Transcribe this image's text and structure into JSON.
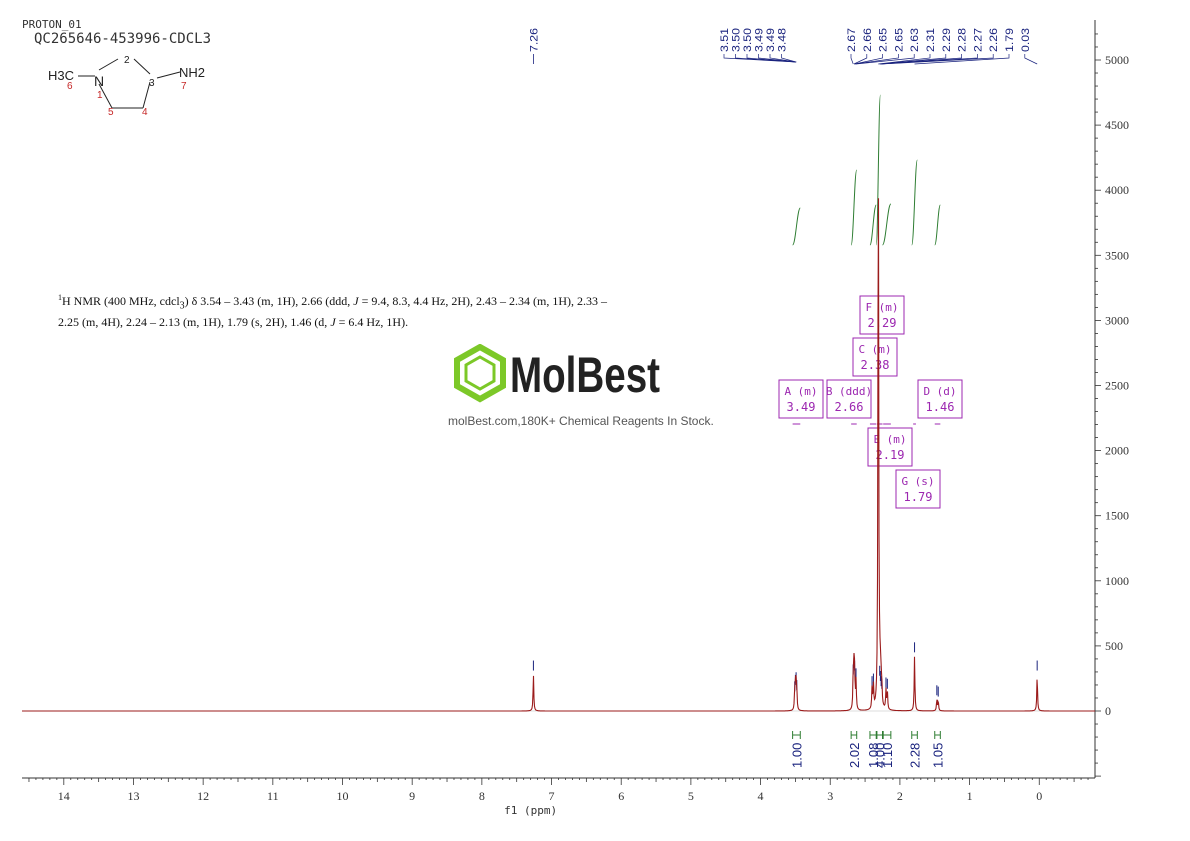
{
  "header": {
    "experiment": "PROTON_01",
    "sample_id": "QC265646-453996-CDCL3"
  },
  "structure": {
    "atoms": {
      "n": "N",
      "c_methyl": "H3C",
      "nh2": "NH2"
    },
    "numbering": [
      "1",
      "2",
      "3",
      "4",
      "5",
      "6",
      "7"
    ]
  },
  "description": {
    "parts": [
      "1",
      "H NMR (400 MHz, cdcl",
      "3",
      ") δ 3.54 – 3.43 (m, 1H), 2.66 (ddd, ",
      "J",
      " = 9.4, 8.3, 4.4 Hz, 2H), 2.43 – 2.34 (m, 1H), 2.33 – 2.25 (m, 4H), 2.24 – 2.13 (m, 1H), 1.79 (s, 2H), 1.46 (d, ",
      "J",
      " = 6.4 Hz, 1H)."
    ]
  },
  "watermark": {
    "brand": "MolBest",
    "tagline": "molBest.com,180K+ Chemical Reagents In Stock."
  },
  "colors": {
    "spectrum": "#9b1b1b",
    "peak_labels": "#1a237e",
    "integral": "#2e7d32",
    "multiplet_box": "#9c27b0",
    "logo_green": "#7cc828"
  },
  "chart_data": {
    "type": "line",
    "title": "",
    "xlabel": "f1 (ppm)",
    "ylabel": "",
    "xlim": [
      14.6,
      -0.8
    ],
    "ylim": [
      -500,
      5200
    ],
    "x_ticks": [
      14,
      13,
      12,
      11,
      10,
      9,
      8,
      7,
      6,
      5,
      4,
      3,
      2,
      1,
      0
    ],
    "y_ticks": [
      5000,
      4500,
      4000,
      3500,
      3000,
      2500,
      2000,
      1500,
      1000,
      500,
      0
    ],
    "grid": false,
    "peaks": [
      {
        "ppm": 7.26,
        "height": 280
      },
      {
        "ppm": 3.51,
        "height": 120
      },
      {
        "ppm": 3.5,
        "height": 170
      },
      {
        "ppm": 3.49,
        "height": 190
      },
      {
        "ppm": 3.48,
        "height": 130
      },
      {
        "ppm": 2.67,
        "height": 250
      },
      {
        "ppm": 2.66,
        "height": 300
      },
      {
        "ppm": 2.65,
        "height": 280
      },
      {
        "ppm": 2.63,
        "height": 220
      },
      {
        "ppm": 2.4,
        "height": 160
      },
      {
        "ppm": 2.38,
        "height": 180
      },
      {
        "ppm": 2.31,
        "height": 4700
      },
      {
        "ppm": 2.29,
        "height": 240
      },
      {
        "ppm": 2.28,
        "height": 200
      },
      {
        "ppm": 2.27,
        "height": 160
      },
      {
        "ppm": 2.26,
        "height": 140
      },
      {
        "ppm": 2.2,
        "height": 150
      },
      {
        "ppm": 2.18,
        "height": 140
      },
      {
        "ppm": 1.79,
        "height": 420
      },
      {
        "ppm": 1.47,
        "height": 90
      },
      {
        "ppm": 1.45,
        "height": 80
      },
      {
        "ppm": 0.03,
        "height": 280
      }
    ],
    "peak_labels_left": [
      "7.26"
    ],
    "peak_labels_group1": [
      "3.51",
      "3.50",
      "3.50",
      "3.49",
      "3.49",
      "3.48"
    ],
    "peak_labels_group2": [
      "2.67",
      "2.66",
      "2.65",
      "2.65",
      "2.63",
      "2.31",
      "2.29",
      "2.28",
      "2.27",
      "2.26",
      "1.79",
      "0.03"
    ],
    "peak_labels_group2_anchors": [
      2.67,
      2.66,
      2.65,
      2.65,
      2.63,
      2.31,
      2.29,
      2.28,
      2.27,
      2.26,
      1.79,
      0.03
    ],
    "multiplets": [
      {
        "letter": "A",
        "type": "m",
        "shift": "3.49",
        "range": [
          3.54,
          3.43
        ]
      },
      {
        "letter": "B",
        "type": "ddd",
        "shift": "2.66",
        "range": [
          2.7,
          2.62
        ]
      },
      {
        "letter": "C",
        "type": "m",
        "shift": "2.38",
        "range": [
          2.43,
          2.34
        ]
      },
      {
        "letter": "D",
        "type": "d",
        "shift": "1.46",
        "range": [
          1.5,
          1.42
        ]
      },
      {
        "letter": "E",
        "type": "m",
        "shift": "2.19",
        "range": [
          2.24,
          2.13
        ]
      },
      {
        "letter": "F",
        "type": "m",
        "shift": "2.29",
        "range": [
          2.33,
          2.25
        ]
      },
      {
        "letter": "G",
        "type": "s",
        "shift": "1.79",
        "range": [
          1.81,
          1.77
        ]
      }
    ],
    "integrals": [
      {
        "value": "1.00",
        "range": [
          3.54,
          3.43
        ]
      },
      {
        "value": "2.02",
        "range": [
          2.7,
          2.62
        ]
      },
      {
        "value": "1.08",
        "range": [
          2.43,
          2.34
        ]
      },
      {
        "value": "4.00",
        "range": [
          2.33,
          2.25
        ]
      },
      {
        "value": "1.10",
        "range": [
          2.24,
          2.13
        ]
      },
      {
        "value": "2.28",
        "range": [
          1.83,
          1.75
        ]
      },
      {
        "value": "1.05",
        "range": [
          1.5,
          1.42
        ]
      }
    ]
  }
}
